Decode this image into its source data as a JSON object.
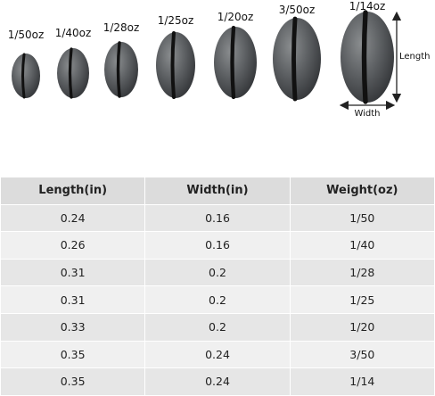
{
  "sizes": [
    "1/50oz",
    "1/40oz",
    "1/28oz",
    "1/25oz",
    "1/20oz",
    "3/50oz",
    "1/14oz"
  ],
  "dimension_labels": {
    "length": "Length",
    "width": "Width"
  },
  "table": {
    "header": [
      "Length(in)",
      "Width(in)",
      "Weight(oz)"
    ],
    "rows": [
      [
        "0.24",
        "0.16",
        "1/50"
      ],
      [
        "0.26",
        "0.16",
        "1/40"
      ],
      [
        "0.31",
        "0.2",
        "1/28"
      ],
      [
        "0.31",
        "0.2",
        "1/25"
      ],
      [
        "0.33",
        "0.2",
        "1/20"
      ],
      [
        "0.35",
        "0.24",
        "3/50"
      ],
      [
        "0.35",
        "0.24",
        "1/14"
      ]
    ]
  }
}
